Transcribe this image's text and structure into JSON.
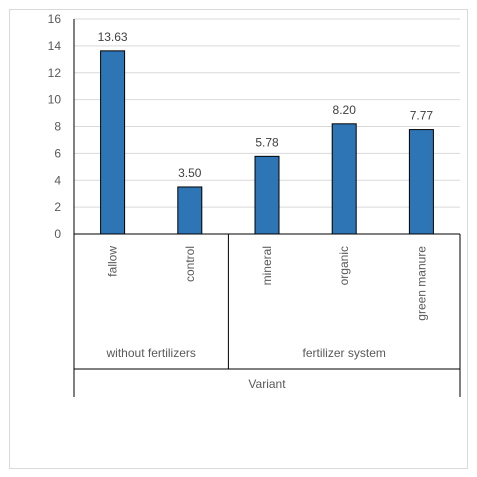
{
  "chart_data": {
    "type": "bar",
    "categories": [
      "fallow",
      "control",
      "mineral",
      "organic",
      "green manure"
    ],
    "groups": [
      {
        "label": "without fertilizers",
        "categories": [
          "fallow",
          "control"
        ]
      },
      {
        "label": "fertilizer system",
        "categories": [
          "mineral",
          "organic",
          "green manure"
        ]
      }
    ],
    "values": [
      13.63,
      3.5,
      5.78,
      8.2,
      7.77
    ],
    "value_labels": [
      "13.63",
      "3.50",
      "5.78",
      "8.20",
      "7.77"
    ],
    "title": "",
    "xlabel": "Variant",
    "ylabel": "",
    "ylim": [
      0,
      16
    ],
    "yticks": [
      0,
      2,
      4,
      6,
      8,
      10,
      12,
      14,
      16
    ],
    "grid": true,
    "bar_color": "#2e75b6",
    "bar_edge_color": "#000000"
  }
}
